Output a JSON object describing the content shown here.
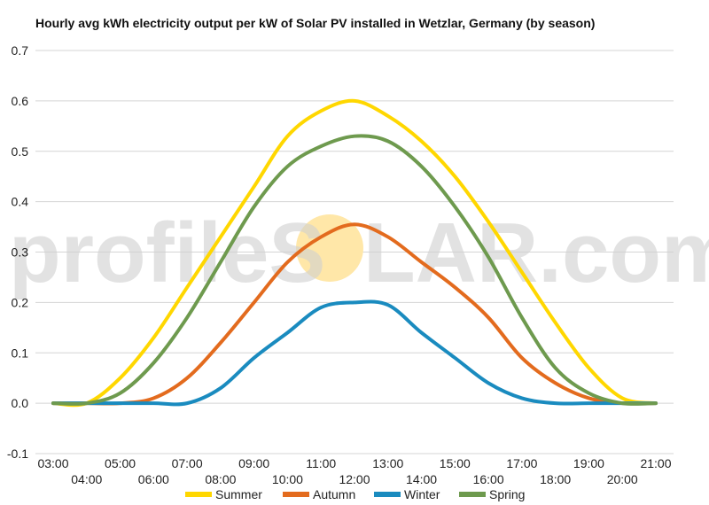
{
  "chart_data": {
    "type": "line",
    "title": "Hourly avg kWh electricity output per kW of Solar PV installed in Wetzlar, Germany (by season)",
    "xlabel": "",
    "ylabel": "",
    "x": [
      "03:00",
      "04:00",
      "05:00",
      "06:00",
      "07:00",
      "08:00",
      "09:00",
      "10:00",
      "11:00",
      "12:00",
      "13:00",
      "14:00",
      "15:00",
      "16:00",
      "17:00",
      "18:00",
      "19:00",
      "20:00",
      "21:00"
    ],
    "ylim": [
      -0.1,
      0.7
    ],
    "yticks": [
      "-0.1",
      "0.0",
      "0.1",
      "0.2",
      "0.3",
      "0.4",
      "0.5",
      "0.6",
      "0.7"
    ],
    "grid": true,
    "legend_position": "bottom",
    "series": [
      {
        "name": "Summer",
        "color": "#FFD700",
        "values": [
          0.0,
          0.0,
          0.05,
          0.13,
          0.23,
          0.33,
          0.43,
          0.53,
          0.58,
          0.6,
          0.57,
          0.52,
          0.45,
          0.36,
          0.26,
          0.16,
          0.07,
          0.01,
          0.0
        ]
      },
      {
        "name": "Autumn",
        "color": "#E36B1E",
        "values": [
          0.0,
          0.0,
          0.0,
          0.01,
          0.05,
          0.12,
          0.2,
          0.28,
          0.33,
          0.355,
          0.33,
          0.28,
          0.23,
          0.17,
          0.09,
          0.04,
          0.01,
          0.0,
          0.0
        ]
      },
      {
        "name": "Winter",
        "color": "#1A8BBF",
        "values": [
          0.0,
          0.0,
          0.0,
          0.0,
          0.0,
          0.03,
          0.09,
          0.14,
          0.19,
          0.2,
          0.195,
          0.14,
          0.09,
          0.04,
          0.01,
          0.0,
          0.0,
          0.0,
          0.0
        ]
      },
      {
        "name": "Spring",
        "color": "#6E9A4E",
        "values": [
          0.0,
          0.0,
          0.02,
          0.08,
          0.17,
          0.28,
          0.39,
          0.47,
          0.51,
          0.53,
          0.52,
          0.47,
          0.39,
          0.29,
          0.17,
          0.07,
          0.02,
          0.0,
          0.0
        ]
      }
    ]
  },
  "watermark": {
    "text_left": "profileS",
    "text_right": "LAR.com",
    "sun_color": "#FFE7A8"
  }
}
